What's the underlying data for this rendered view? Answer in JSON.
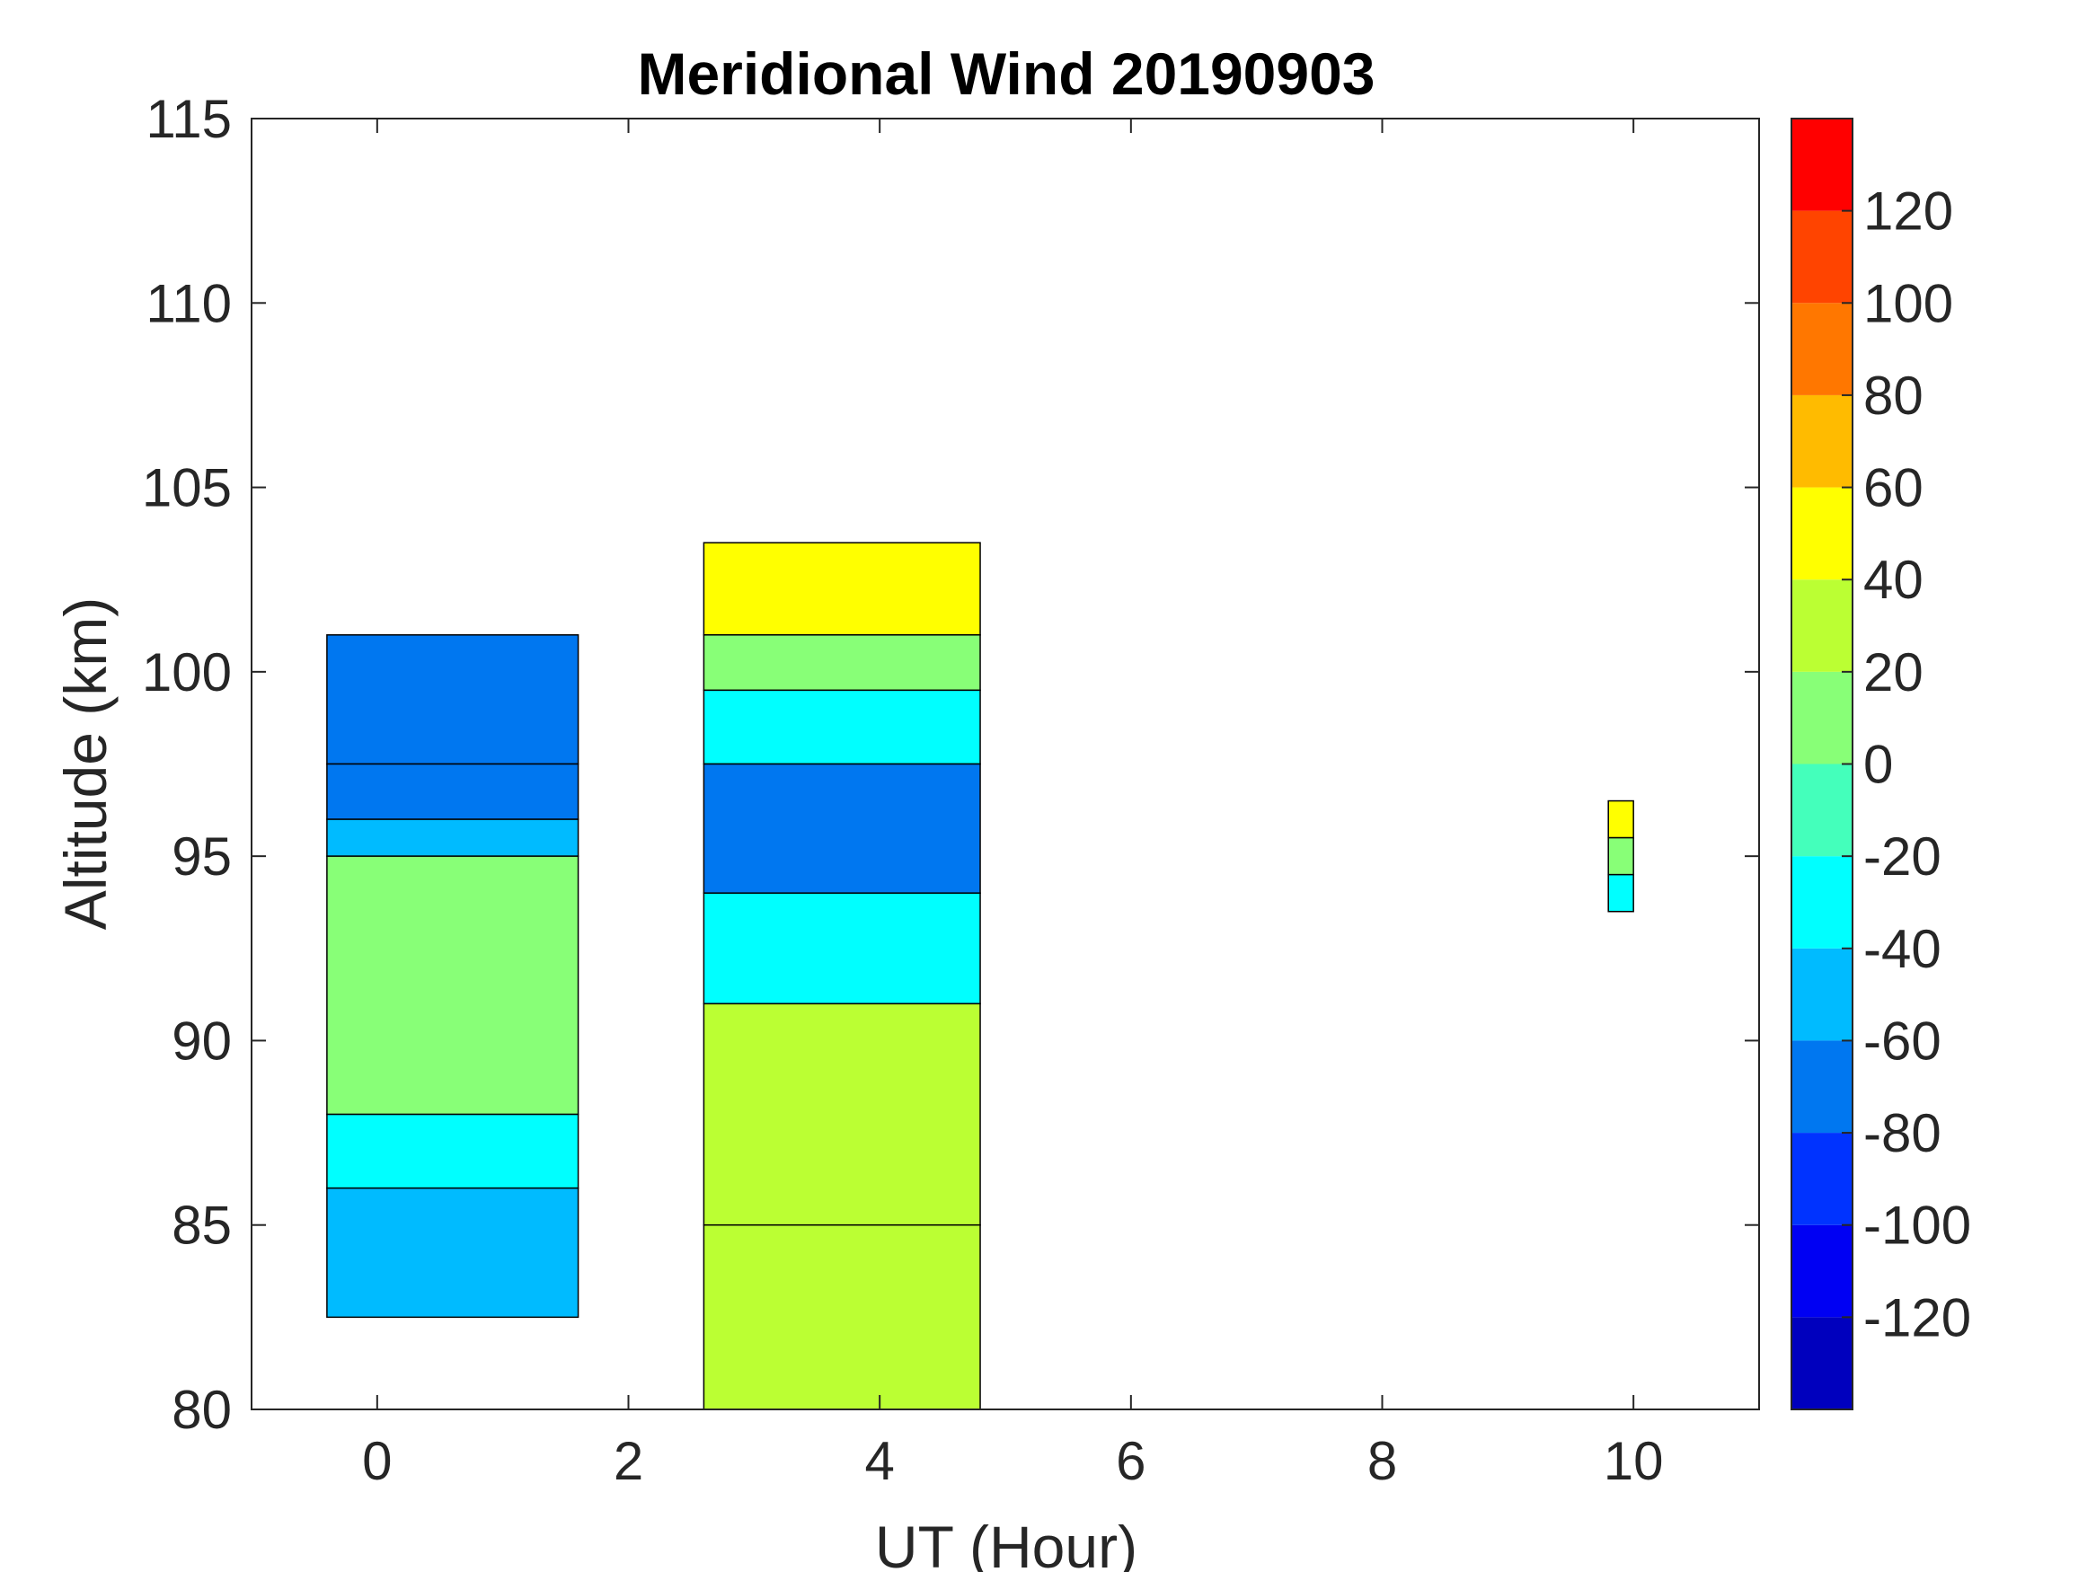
{
  "chart_data": {
    "type": "heatmap",
    "title": "Meridional Wind 20190903",
    "xlabel": "UT (Hour)",
    "ylabel": "Altitude (km)",
    "xlim": [
      -1,
      11
    ],
    "ylim": [
      80,
      115
    ],
    "xticks": [
      0,
      2,
      4,
      6,
      8,
      10
    ],
    "yticks": [
      80,
      85,
      90,
      95,
      100,
      105,
      110,
      115
    ],
    "grid": false,
    "colorbar": {
      "range": [
        -140,
        140
      ],
      "levels": [
        -140,
        -120,
        -100,
        -80,
        -60,
        -40,
        -20,
        0,
        20,
        40,
        60,
        80,
        100,
        120,
        140
      ],
      "colors": [
        "#0000be",
        "#0000f3",
        "#0033ff",
        "#0077f0",
        "#00bbff",
        "#00ffff",
        "#44ffbb",
        "#88ff77",
        "#bbff33",
        "#ffff00",
        "#ffbb00",
        "#ff7700",
        "#ff4400",
        "#ff0000"
      ],
      "tick_values": [
        -120,
        -100,
        -80,
        -60,
        -40,
        -20,
        0,
        20,
        40,
        60,
        80,
        100,
        120
      ],
      "tick_labels": [
        "-120",
        "-100",
        "-80",
        "-60",
        "-40",
        "-20",
        "0",
        "20",
        "40",
        "60",
        "80",
        "100",
        "120"
      ]
    },
    "regions": [
      {
        "name": "block-1",
        "ut_range": [
          -0.4,
          1.6
        ],
        "altitude_range": [
          82.5,
          101
        ],
        "bands": [
          {
            "altitude": [
              97.5,
              101
            ],
            "value": -80
          },
          {
            "altitude": [
              96,
              97.5
            ],
            "value": -70
          },
          {
            "altitude": [
              95,
              96
            ],
            "value": -55
          },
          {
            "altitude": [
              88,
              95
            ],
            "value": 10
          },
          {
            "altitude": [
              86,
              88
            ],
            "value": -30
          },
          {
            "altitude": [
              82.5,
              86
            ],
            "value": -50
          }
        ]
      },
      {
        "name": "block-2",
        "ut_range": [
          2.6,
          4.8
        ],
        "altitude_range": [
          80,
          103.5
        ],
        "bands": [
          {
            "altitude": [
              101,
              103.5
            ],
            "value": 40
          },
          {
            "altitude": [
              99.5,
              101
            ],
            "value": 0
          },
          {
            "altitude": [
              97.5,
              99.5
            ],
            "value": -40
          },
          {
            "altitude": [
              94,
              97.5
            ],
            "value": -80
          },
          {
            "altitude": [
              91,
              94
            ],
            "value": -40
          },
          {
            "altitude": [
              85,
              91
            ],
            "value": 20
          },
          {
            "altitude": [
              80,
              85
            ],
            "value": 30
          }
        ]
      },
      {
        "name": "block-3",
        "ut_range": [
          9.8,
          10
        ],
        "altitude_range": [
          93.5,
          96.5
        ],
        "bands": [
          {
            "altitude": [
              95.5,
              96.5
            ],
            "value": 40
          },
          {
            "altitude": [
              94.5,
              95.5
            ],
            "value": 10
          },
          {
            "altitude": [
              93.5,
              94.5
            ],
            "value": -30
          }
        ]
      }
    ]
  }
}
